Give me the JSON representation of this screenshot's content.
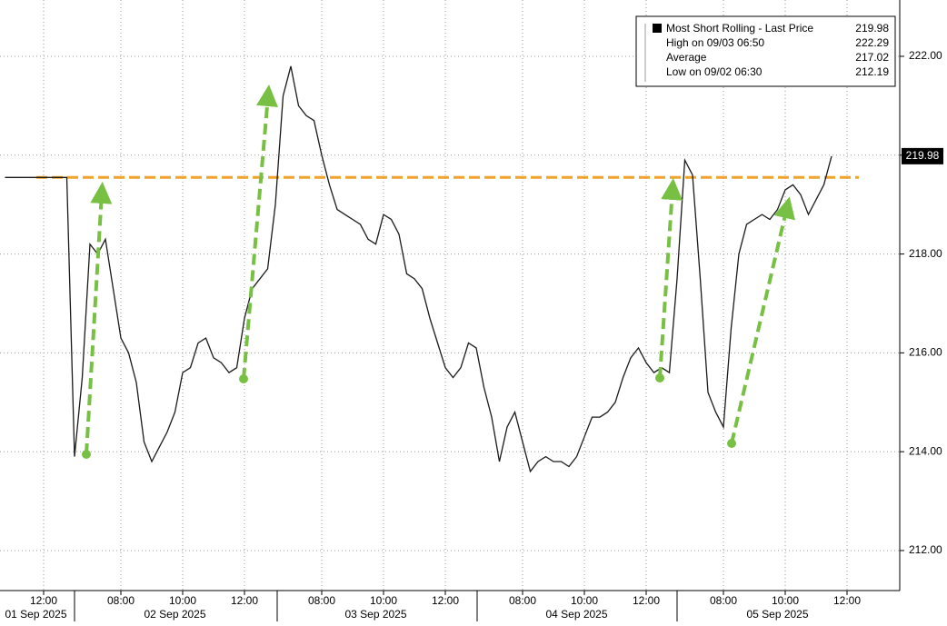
{
  "chart_data": {
    "type": "line",
    "categories": [
      null,
      null,
      null,
      null,
      null,
      "12:00",
      null,
      null,
      null,
      null,
      null,
      null,
      null,
      null,
      null,
      "08:00",
      null,
      null,
      null,
      null,
      null,
      null,
      null,
      "10:00",
      null,
      null,
      null,
      null,
      null,
      null,
      null,
      "12:00",
      null,
      null,
      null,
      null,
      null,
      null,
      null,
      null,
      null,
      "08:00",
      null,
      null,
      null,
      null,
      null,
      null,
      null,
      "10:00",
      null,
      null,
      null,
      null,
      null,
      null,
      null,
      "12:00",
      null,
      null,
      null,
      null,
      null,
      null,
      null,
      null,
      null,
      "08:00",
      null,
      null,
      null,
      null,
      null,
      null,
      null,
      "10:00",
      null,
      null,
      null,
      null,
      null,
      null,
      null,
      "12:00",
      null,
      null,
      null,
      null,
      null,
      null,
      null,
      null,
      null,
      "08:00",
      null,
      null,
      null,
      null,
      null,
      null,
      null,
      "10:00",
      null,
      null,
      null,
      null,
      null,
      null,
      null,
      "12:00",
      null,
      null,
      null,
      null,
      null,
      null
    ],
    "dates": [
      null,
      null,
      null,
      null,
      "01 Sep 2025",
      null,
      null,
      null,
      null,
      null,
      null,
      null,
      null,
      null,
      null,
      null,
      null,
      null,
      null,
      null,
      null,
      null,
      "02 Sep 2025",
      null,
      null,
      null,
      null,
      null,
      null,
      null,
      null,
      null,
      null,
      null,
      null,
      null,
      null,
      null,
      null,
      null,
      null,
      null,
      null,
      null,
      null,
      null,
      null,
      null,
      "03 Sep 2025",
      null,
      null,
      null,
      null,
      null,
      null,
      null,
      null,
      null,
      null,
      null,
      null,
      null,
      null,
      null,
      null,
      null,
      null,
      null,
      null,
      null,
      null,
      null,
      null,
      null,
      "04 Sep 2025",
      null,
      null,
      null,
      null,
      null,
      null,
      null,
      null,
      null,
      null,
      null,
      null,
      null,
      null,
      null,
      null,
      null,
      null,
      null,
      null,
      null,
      null,
      null,
      null,
      null,
      "05 Sep 2025",
      null,
      null,
      null,
      null,
      null,
      null,
      null,
      null,
      null,
      null,
      null,
      null,
      null,
      null,
      null
    ],
    "series": [
      {
        "name": "Most Short Rolling - Last Price",
        "color": "#1a1a1a",
        "values": [
          219.55,
          219.55,
          219.55,
          219.55,
          219.55,
          219.55,
          219.55,
          219.55,
          219.55,
          213.9,
          215.5,
          218.2,
          218.0,
          218.3,
          217.3,
          216.3,
          216.0,
          215.4,
          214.2,
          213.8,
          214.1,
          214.4,
          214.8,
          215.6,
          215.7,
          216.2,
          216.3,
          215.9,
          215.8,
          215.6,
          215.7,
          216.7,
          217.3,
          217.5,
          217.7,
          219.0,
          221.2,
          221.8,
          221.0,
          220.8,
          220.7,
          220.0,
          219.4,
          218.9,
          218.8,
          218.7,
          218.6,
          218.3,
          218.2,
          218.8,
          218.7,
          218.4,
          217.6,
          217.5,
          217.3,
          216.7,
          216.2,
          215.7,
          215.5,
          215.7,
          216.2,
          216.1,
          215.3,
          214.7,
          213.8,
          214.5,
          214.8,
          214.2,
          213.6,
          213.8,
          213.9,
          213.8,
          213.8,
          213.7,
          213.9,
          214.3,
          214.7,
          214.7,
          214.8,
          215.0,
          215.5,
          215.9,
          216.1,
          215.8,
          215.6,
          215.7,
          215.6,
          217.5,
          219.9,
          219.6,
          217.5,
          215.2,
          214.8,
          214.5,
          216.5,
          218.0,
          218.6,
          218.7,
          218.8,
          218.7,
          218.9,
          219.3,
          219.4,
          219.2,
          218.8,
          219.1,
          219.4,
          219.98,
          null,
          null,
          null,
          null,
          null,
          null,
          null,
          null
        ]
      }
    ],
    "ylim": [
      211.19,
      223.14
    ],
    "yticks": [
      {
        "value": 212,
        "label": "212.00"
      },
      {
        "value": 214,
        "label": "214.00"
      },
      {
        "value": 216,
        "label": "216.00"
      },
      {
        "value": 218,
        "label": "218.00"
      },
      {
        "value": 220,
        "label": "220.00"
      },
      {
        "value": 222,
        "label": "222.00"
      }
    ],
    "grid": true,
    "reference_line": {
      "value": 219.55,
      "color": "#f0a32a"
    },
    "last_price": 219.98,
    "legend": [
      {
        "label": "Most Short Rolling - Last Price",
        "value": 219.98
      },
      {
        "label": "High on 09/03 06:50",
        "value": 222.29
      },
      {
        "label": "Average",
        "value": 217.02
      },
      {
        "label": "Low on 09/02 06:30",
        "value": 212.19
      }
    ]
  }
}
